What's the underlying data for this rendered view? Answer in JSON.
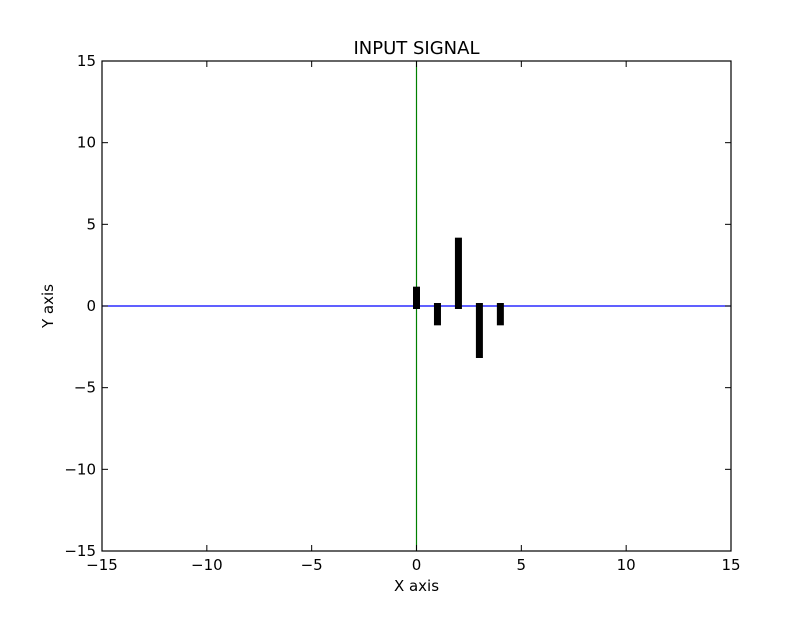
{
  "chart_data": {
    "type": "bar",
    "title": "INPUT SIGNAL",
    "xlabel": "X axis",
    "ylabel": "Y axis",
    "xlim": [
      -15,
      15
    ],
    "ylim": [
      -15,
      15
    ],
    "xticks": [
      -15,
      -10,
      -5,
      0,
      5,
      10,
      15
    ],
    "yticks": [
      -15,
      -10,
      -5,
      0,
      5,
      10,
      15
    ],
    "x": [
      0,
      1,
      2,
      3,
      4
    ],
    "values": [
      1,
      -1,
      4,
      -3,
      -1
    ],
    "grid": false,
    "colors": {
      "bars": "#000000",
      "horizontal_axis_line": "#0000ff",
      "vertical_axis_line": "#008000",
      "frame": "#000000",
      "background": "#ffffff"
    }
  }
}
